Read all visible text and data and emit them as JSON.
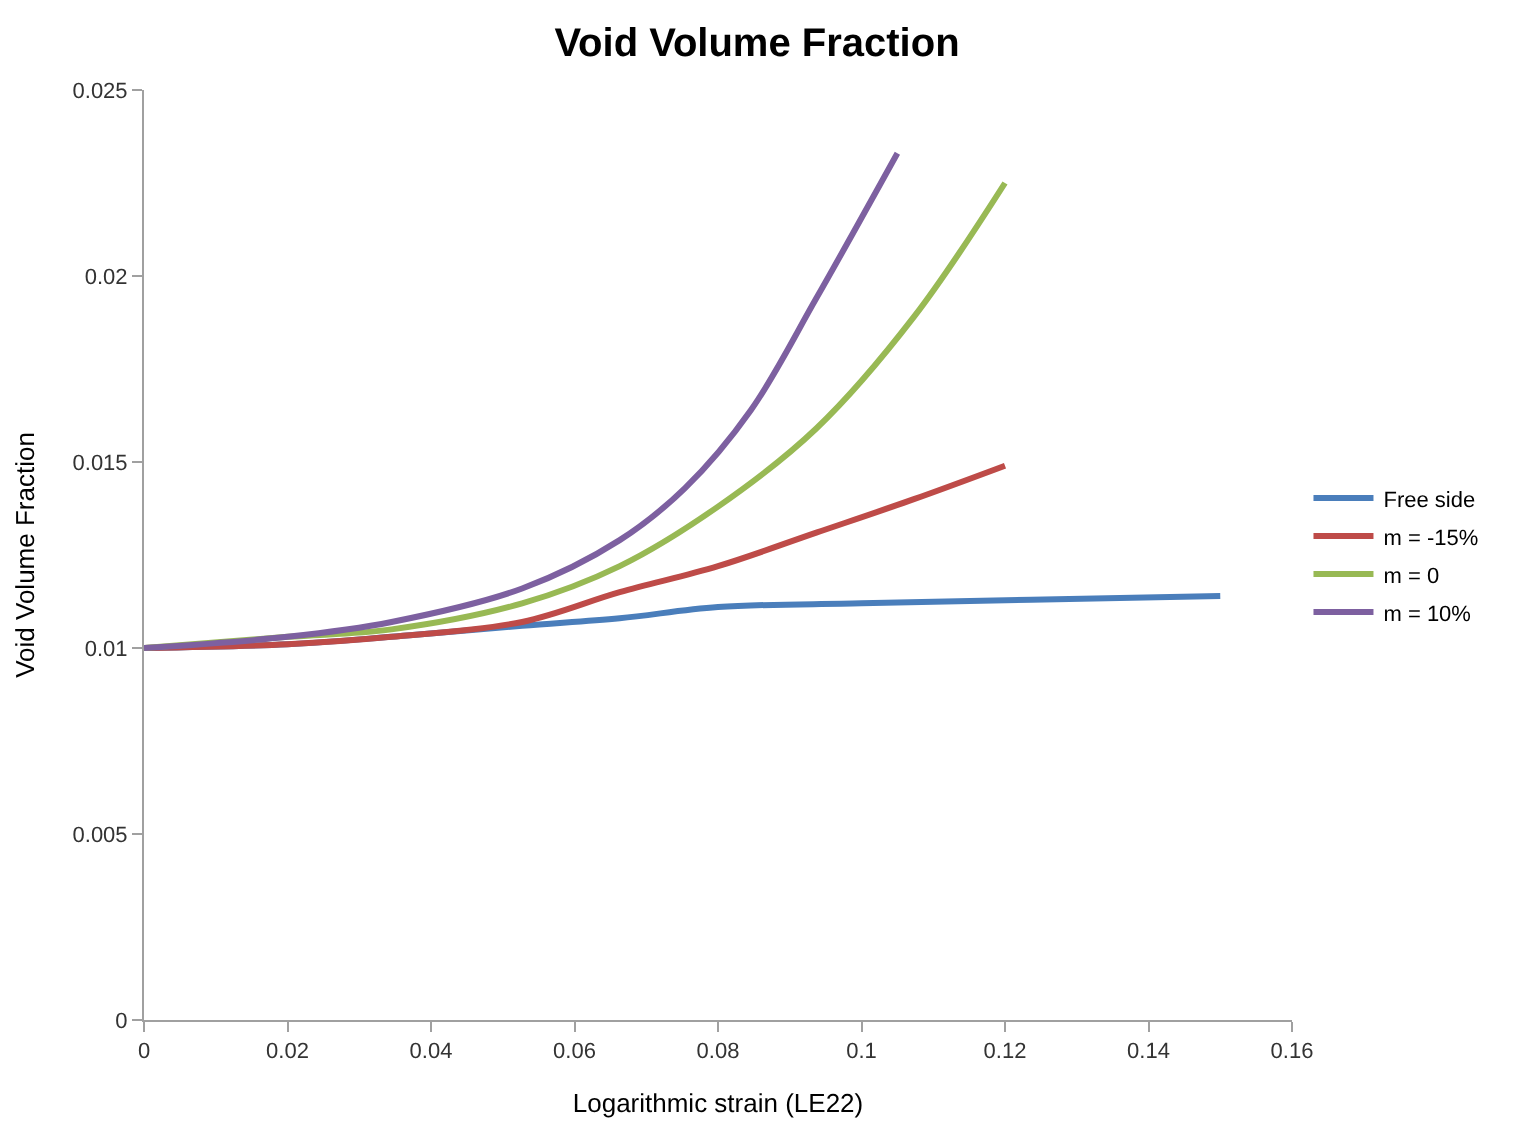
{
  "chart_data": {
    "type": "line",
    "title": "Void Volume Fraction",
    "xlabel": "Logarithmic strain (LE22)",
    "ylabel": "Void Volume Fraction",
    "xlim": [
      0,
      0.16
    ],
    "xticks": [
      {
        "value": 0,
        "label": "0"
      },
      0.02,
      0.04,
      0.06,
      0.08,
      0.1,
      0.12,
      0.14,
      0.16
    ],
    "ylim": [
      0,
      0.025
    ],
    "yticks": [
      {
        "value": 0,
        "label": "0"
      },
      0.005,
      0.01,
      0.015,
      0.02,
      0.025
    ],
    "legend": "right",
    "marker": "none",
    "line_style": "solid",
    "series": [
      {
        "name": "Free side",
        "color": "#4a7ebb",
        "x": [
          0,
          0.02,
          0.0345,
          0.0527,
          0.0663,
          0.08,
          0.1,
          0.1237,
          0.15
        ],
        "values": [
          0.01,
          0.0101,
          0.0103,
          0.0106,
          0.0108,
          0.0111,
          0.0112,
          0.0113,
          0.0114
        ]
      },
      {
        "name": "m = -15%",
        "color": "#be4b48",
        "x": [
          0,
          0.02,
          0.0345,
          0.0527,
          0.0663,
          0.08,
          0.0937,
          0.1073,
          0.12
        ],
        "values": [
          0.01,
          0.0101,
          0.0103,
          0.0107,
          0.0115,
          0.0122,
          0.0131,
          0.014,
          0.0149
        ]
      },
      {
        "name": "m = 0",
        "color": "#98b954",
        "x": [
          0,
          0.02,
          0.0345,
          0.0527,
          0.0663,
          0.08,
          0.0937,
          0.1073,
          0.12
        ],
        "values": [
          0.01,
          0.0103,
          0.0105,
          0.0112,
          0.0122,
          0.0138,
          0.0159,
          0.0189,
          0.0225
        ]
      },
      {
        "name": "m = 10%",
        "color": "#7d60a0",
        "x": [
          0,
          0.02,
          0.0345,
          0.0527,
          0.0663,
          0.0754,
          0.0846,
          0.0937,
          0.105
        ],
        "values": [
          0.01,
          0.0103,
          0.0107,
          0.0116,
          0.0129,
          0.0143,
          0.0164,
          0.0194,
          0.0233
        ]
      }
    ]
  }
}
